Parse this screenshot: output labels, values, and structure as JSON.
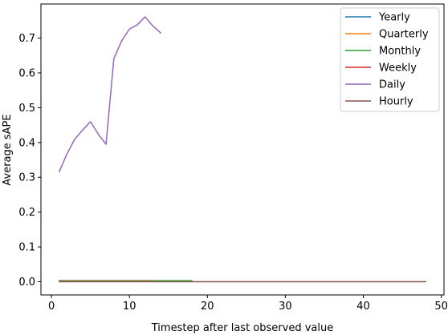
{
  "chart_data": {
    "type": "line",
    "title": "",
    "xlabel": "Timestep after last observed value",
    "ylabel": "Average sAPE",
    "xlim": [
      -1.35,
      50.35
    ],
    "ylim": [
      -0.038,
      0.798
    ],
    "xticks": [
      0,
      10,
      20,
      30,
      40,
      50
    ],
    "yticks": [
      0.0,
      0.1,
      0.2,
      0.3,
      0.4,
      0.5,
      0.6,
      0.7
    ],
    "ytick_labels": [
      "0.0",
      "0.1",
      "0.2",
      "0.3",
      "0.4",
      "0.5",
      "0.6",
      "0.7"
    ],
    "grid": false,
    "legend_position": "top-right",
    "series": [
      {
        "name": "Yearly",
        "color": "#1f77b4",
        "x": [
          1,
          2,
          3,
          4,
          5,
          6
        ],
        "y": [
          0.002,
          0.002,
          0.002,
          0.002,
          0.002,
          0.002
        ]
      },
      {
        "name": "Quarterly",
        "color": "#ff7f0e",
        "x": [
          1,
          2,
          3,
          4,
          5,
          6,
          7,
          8
        ],
        "y": [
          0.002,
          0.002,
          0.002,
          0.002,
          0.002,
          0.002,
          0.002,
          0.002
        ]
      },
      {
        "name": "Monthly",
        "color": "#2ca02c",
        "x": [
          1,
          2,
          3,
          4,
          5,
          6,
          7,
          8,
          9,
          10,
          11,
          12,
          13,
          14,
          15,
          16,
          17,
          18
        ],
        "y": [
          0.003,
          0.003,
          0.003,
          0.003,
          0.003,
          0.003,
          0.003,
          0.003,
          0.003,
          0.003,
          0.003,
          0.003,
          0.003,
          0.003,
          0.003,
          0.003,
          0.003,
          0.003
        ]
      },
      {
        "name": "Weekly",
        "color": "#d62728",
        "x": [
          1,
          2,
          3,
          4,
          5,
          6,
          7,
          8,
          9,
          10,
          11,
          12,
          13
        ],
        "y": [
          0.001,
          0.001,
          0.001,
          0.001,
          0.001,
          0.001,
          0.001,
          0.001,
          0.001,
          0.001,
          0.001,
          0.001,
          0.001
        ]
      },
      {
        "name": "Daily",
        "color": "#9467bd",
        "x": [
          1,
          2,
          3,
          4,
          5,
          6,
          7,
          8,
          9,
          10,
          11,
          12,
          13,
          14
        ],
        "y": [
          0.316,
          0.368,
          0.41,
          0.436,
          0.46,
          0.424,
          0.395,
          0.641,
          0.692,
          0.726,
          0.738,
          0.761,
          0.735,
          0.715
        ]
      },
      {
        "name": "Hourly",
        "color": "#8c564b",
        "x": [
          1,
          48
        ],
        "y": [
          0.0,
          0.0
        ]
      }
    ]
  }
}
